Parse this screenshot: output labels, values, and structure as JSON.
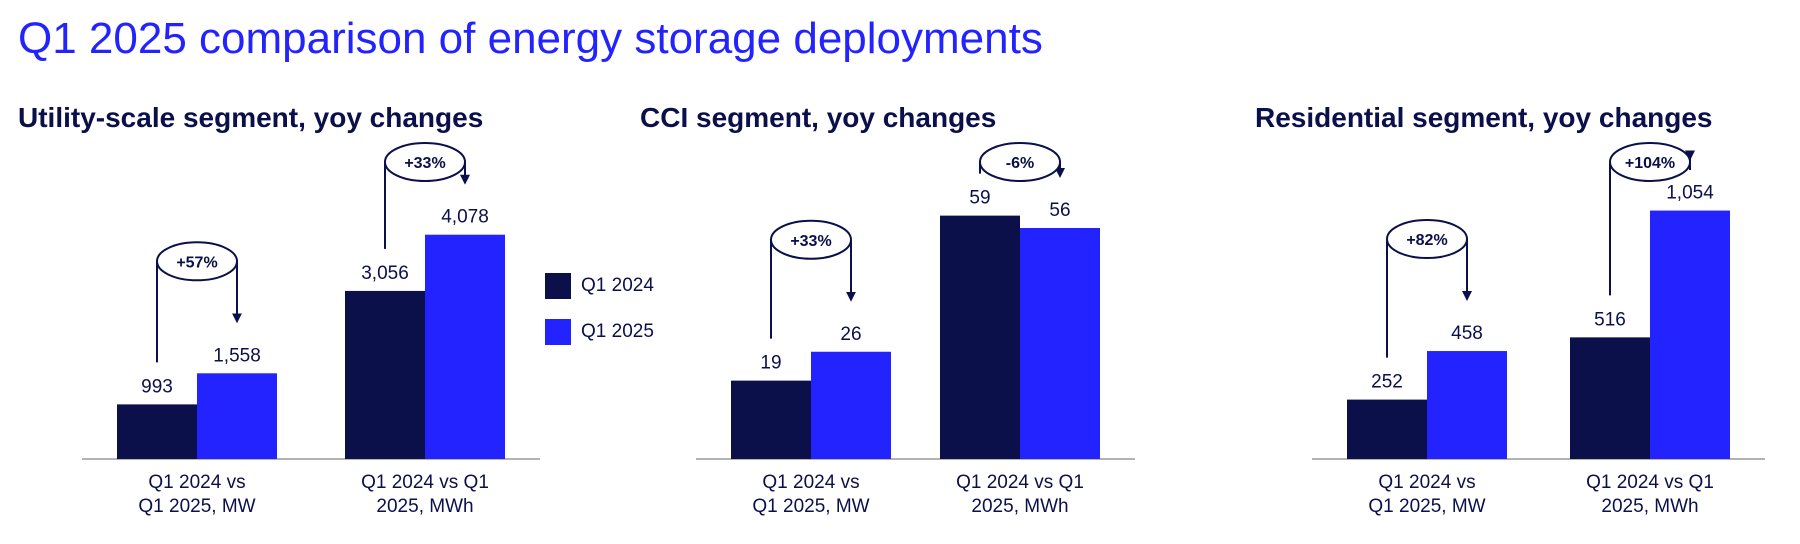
{
  "title": "Q1 2025 comparison of energy storage deployments",
  "colors": {
    "q1_2024": "#0b0f4a",
    "q1_2025": "#2323ff",
    "text": "#0b0f4a"
  },
  "chart_data": [
    {
      "type": "bar",
      "title": "Utility-scale segment, yoy changes",
      "categories": [
        [
          "Q1 2024 vs",
          "Q1 2025, MW"
        ],
        [
          "Q1 2024 vs Q1",
          "2025, MWh"
        ]
      ],
      "series": [
        {
          "name": "Q1 2024",
          "values": [
            993,
            3056
          ],
          "labels": [
            "993",
            "3,056"
          ]
        },
        {
          "name": "Q1 2025",
          "values": [
            1558,
            4078
          ],
          "labels": [
            "1,558",
            "4,078"
          ]
        }
      ],
      "annotations": [
        "+57%",
        "+33%"
      ]
    },
    {
      "type": "bar",
      "title": "CCI segment, yoy changes",
      "categories": [
        [
          "Q1 2024 vs",
          "Q1 2025, MW"
        ],
        [
          "Q1 2024 vs Q1",
          "2025, MWh"
        ]
      ],
      "series": [
        {
          "name": "Q1 2024",
          "values": [
            19,
            59
          ],
          "labels": [
            "19",
            "59"
          ]
        },
        {
          "name": "Q1 2025",
          "values": [
            26,
            56
          ],
          "labels": [
            "26",
            "56"
          ]
        }
      ],
      "annotations": [
        "+33%",
        "-6%"
      ]
    },
    {
      "type": "bar",
      "title": "Residential segment, yoy changes",
      "categories": [
        [
          "Q1 2024 vs",
          "Q1 2025, MW"
        ],
        [
          "Q1 2024 vs Q1",
          "2025, MWh"
        ]
      ],
      "series": [
        {
          "name": "Q1 2024",
          "values": [
            252,
            516
          ],
          "labels": [
            "252",
            "516"
          ]
        },
        {
          "name": "Q1 2025",
          "values": [
            458,
            1054
          ],
          "labels": [
            "458",
            "1,054"
          ]
        }
      ],
      "annotations": [
        "+82%",
        "+104%"
      ]
    }
  ],
  "legend": [
    {
      "label": "Q1 2024",
      "color": "#0b0f4a"
    },
    {
      "label": "Q1 2025",
      "color": "#2323ff"
    }
  ]
}
